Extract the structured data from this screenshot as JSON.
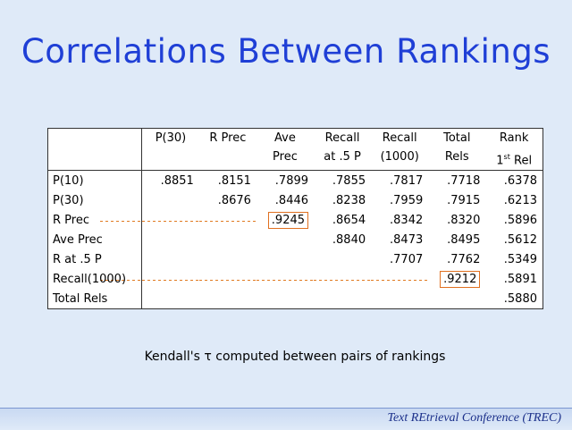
{
  "title": "Correlations Between Rankings",
  "table": {
    "header": [
      {
        "lines": [
          "P(30)"
        ]
      },
      {
        "lines": [
          "R Prec"
        ]
      },
      {
        "lines": [
          "Ave",
          "Prec"
        ]
      },
      {
        "lines": [
          "Recall",
          "at .5 P"
        ]
      },
      {
        "lines": [
          "Recall",
          "(1000)"
        ]
      },
      {
        "lines": [
          "Total",
          "Rels"
        ]
      },
      {
        "lines": [
          "Rank"
        ],
        "ordinal": "1",
        "suffix": "st",
        "rest": "Rel"
      }
    ],
    "rows": [
      {
        "label": "P(10)",
        "cells": [
          ".8851",
          ".8151",
          ".7899",
          ".7855",
          ".7817",
          ".7718",
          ".6378"
        ]
      },
      {
        "label": "P(30)",
        "cells": [
          null,
          ".8676",
          ".8446",
          ".8238",
          ".7959",
          ".7915",
          ".6213"
        ]
      },
      {
        "label": "R Prec",
        "cells": [
          null,
          null,
          ".9245",
          ".8654",
          ".8342",
          ".8320",
          ".5896"
        ]
      },
      {
        "label": "Ave Prec",
        "cells": [
          null,
          null,
          null,
          ".8840",
          ".8473",
          ".8495",
          ".5612"
        ]
      },
      {
        "label": "R at .5 P",
        "cells": [
          null,
          null,
          null,
          null,
          ".7707",
          ".7762",
          ".5349"
        ]
      },
      {
        "label": "Recall(1000)",
        "cells": [
          null,
          null,
          null,
          null,
          null,
          ".9212",
          ".5891"
        ]
      },
      {
        "label": "Total Rels",
        "cells": [
          null,
          null,
          null,
          null,
          null,
          null,
          ".5880"
        ]
      }
    ]
  },
  "caption": "Kendall's τ computed between pairs of rankings",
  "footer": "Text REtrieval Conference (TREC)"
}
